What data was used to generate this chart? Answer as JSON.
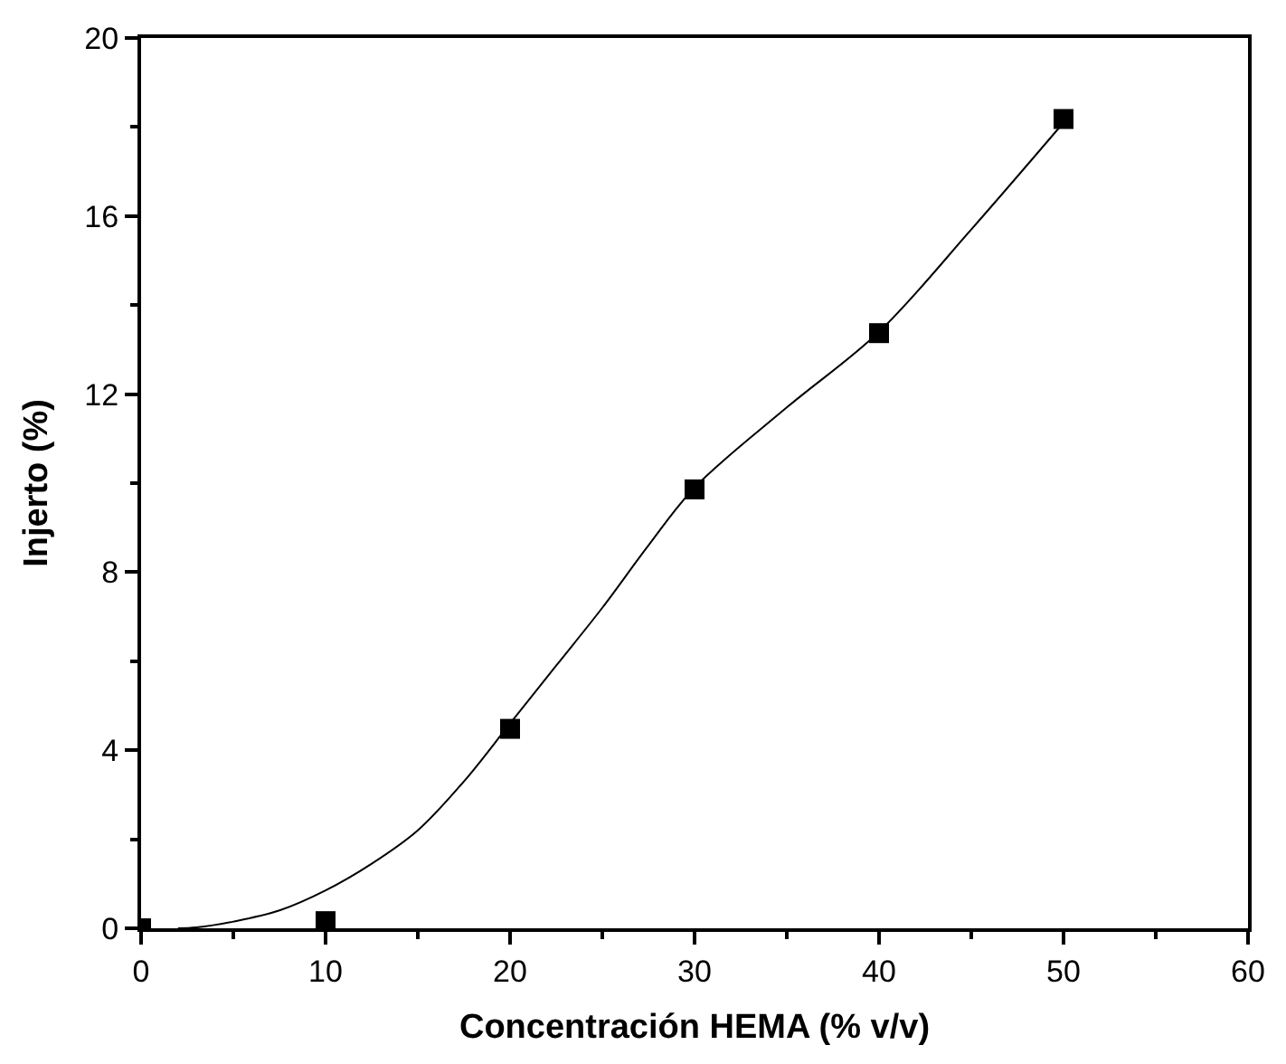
{
  "chart_data": {
    "type": "scatter",
    "xlabel": "Concentración HEMA (% v/v)",
    "ylabel": "Injerto (%)",
    "xlim": [
      0,
      60
    ],
    "xticks": [
      0,
      10,
      20,
      30,
      40,
      50,
      60
    ],
    "ylim": [
      0,
      20
    ],
    "yticks": [
      0,
      4,
      8,
      12,
      16,
      20
    ],
    "series": [
      {
        "type": "line",
        "color": "#000000",
        "marker": "none",
        "line_style": "solid",
        "x": [
          2,
          3,
          5,
          7.5,
          10,
          12.5,
          15,
          17.5,
          20,
          22.5,
          25,
          27.5,
          30,
          35,
          40,
          45,
          50
        ],
        "values": [
          0,
          0.02,
          0.15,
          0.4,
          0.85,
          1.45,
          2.2,
          3.3,
          4.6,
          5.9,
          7.2,
          8.6,
          9.9,
          11.7,
          13.4,
          15.7,
          18.1
        ]
      },
      {
        "color": "#000000",
        "marker": "square",
        "x": [
          0,
          10,
          20,
          30,
          40,
          50
        ],
        "values": [
          0,
          0.16,
          4.48,
          9.86,
          13.37,
          18.18
        ]
      }
    ]
  }
}
